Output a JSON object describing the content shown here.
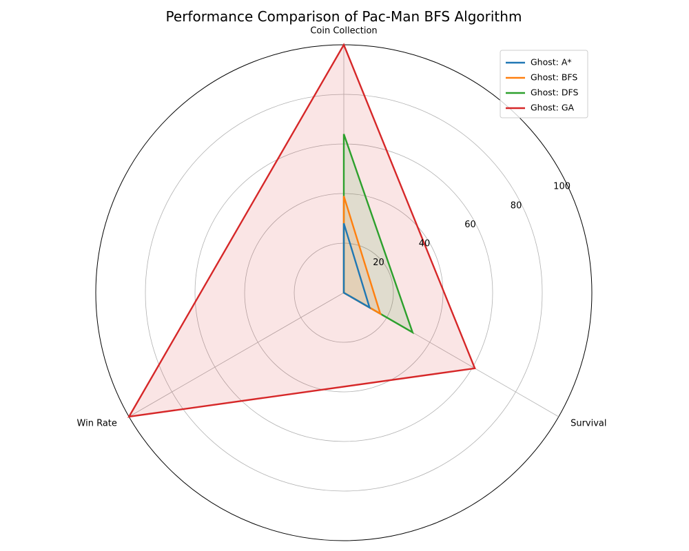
{
  "chart_data": {
    "type": "radar",
    "title": "Performance Comparison of Pac-Man BFS Algorithm",
    "axes": [
      "Coin Collection",
      "Survival",
      "Win Rate"
    ],
    "rlim": [
      0,
      100
    ],
    "r_ticks": [
      "20",
      "40",
      "60",
      "80",
      "100"
    ],
    "r_tick_values": [
      20,
      40,
      60,
      80,
      100
    ],
    "grid": true,
    "legend_position": "top-right",
    "series": [
      {
        "name": "Ghost: A*",
        "color": "#1f77b4",
        "values": [
          28,
          12,
          0
        ],
        "filled": false
      },
      {
        "name": "Ghost: BFS",
        "color": "#ff7f0e",
        "values": [
          39,
          17,
          0
        ],
        "filled": true
      },
      {
        "name": "Ghost: DFS",
        "color": "#2ca02c",
        "values": [
          64,
          32,
          0
        ],
        "filled": true
      },
      {
        "name": "Ghost: GA",
        "color": "#d62728",
        "values": [
          100,
          61,
          100
        ],
        "filled": true
      }
    ]
  }
}
